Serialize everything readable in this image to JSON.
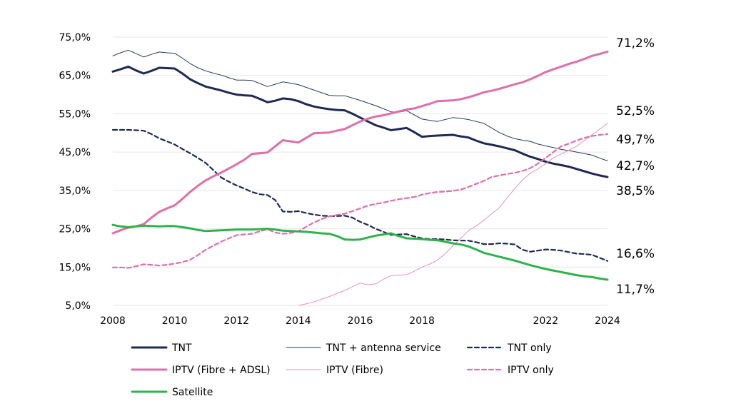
{
  "chart_data": {
    "type": "line",
    "title": "",
    "xlabel": "",
    "ylabel": "",
    "xlim": [
      2008,
      2024
    ],
    "ylim": [
      5,
      75
    ],
    "x_ticks": [
      "2008",
      "2010",
      "2012",
      "2014",
      "2016",
      "2018",
      "2022",
      "2024"
    ],
    "y_ticks": [
      "75,0%",
      "65,0%",
      "55,0%",
      "45,0%",
      "35,0%",
      "25,0%",
      "15,0%",
      "5,0%"
    ],
    "grid": true,
    "legend_position": "bottom",
    "end_labels": [
      "71,2%",
      "52,5%",
      "49,7%",
      "42,7%",
      "38,5%",
      "16,6%",
      "11,7%"
    ],
    "series": [
      {
        "name": "TNT",
        "color": "#1f2a52",
        "dash": "solid",
        "width": "thick",
        "x": [
          2008,
          2008.25,
          2008.5,
          2008.75,
          2009,
          2009.25,
          2009.5,
          2009.75,
          2010,
          2010.25,
          2010.5,
          2010.75,
          2011,
          2011.25,
          2011.5,
          2011.75,
          2012,
          2012.25,
          2012.5,
          2012.75,
          2013,
          2013.25,
          2013.5,
          2013.75,
          2014,
          2014.25,
          2014.5,
          2014.75,
          2015,
          2015.25,
          2015.5,
          2015.75,
          2016,
          2016.25,
          2016.5,
          2016.75,
          2017,
          2017.25,
          2017.5,
          2017.75,
          2018,
          2018.25,
          2018.5,
          2018.75,
          2019,
          2019.25,
          2019.5,
          2019.75,
          2020,
          2020.25,
          2020.5,
          2020.75,
          2021,
          2021.25,
          2021.5,
          2021.75,
          2022,
          2022.25,
          2022.5,
          2022.75,
          2023,
          2023.25,
          2023.5,
          2023.75,
          2024
        ],
        "y": [
          66.0,
          66.6,
          67.3,
          66.3,
          65.5,
          66.2,
          67.0,
          66.9,
          66.8,
          65.5,
          64.0,
          63.0,
          62.1,
          61.6,
          61.1,
          60.5,
          60.0,
          59.8,
          59.7,
          58.9,
          58.0,
          58.4,
          59.0,
          58.8,
          58.3,
          57.5,
          56.9,
          56.5,
          56.2,
          56.0,
          55.9,
          55.0,
          54.0,
          53.0,
          52.0,
          51.4,
          50.7,
          51.0,
          51.3,
          50.2,
          49.0,
          49.2,
          49.3,
          49.4,
          49.5,
          49.1,
          48.8,
          48.0,
          47.3,
          46.9,
          46.5,
          46.0,
          45.5,
          44.6,
          43.8,
          43.2,
          42.5,
          42.0,
          41.6,
          41.2,
          40.6,
          40.0,
          39.4,
          38.9,
          38.5
        ]
      },
      {
        "name": "TNT + antenna service",
        "color": "#2a3766",
        "dash": "solid",
        "width": "thin",
        "x": [
          2008,
          2008.25,
          2008.5,
          2008.75,
          2009,
          2009.25,
          2009.5,
          2009.75,
          2010,
          2010.25,
          2010.5,
          2010.75,
          2011,
          2011.25,
          2011.5,
          2011.75,
          2012,
          2012.25,
          2012.5,
          2012.75,
          2013,
          2013.25,
          2013.5,
          2013.75,
          2014,
          2014.25,
          2014.5,
          2014.75,
          2015,
          2015.25,
          2015.5,
          2015.75,
          2016,
          2016.25,
          2016.5,
          2016.75,
          2017,
          2017.25,
          2017.5,
          2017.75,
          2018,
          2018.25,
          2018.5,
          2018.75,
          2019,
          2019.25,
          2019.5,
          2019.75,
          2020,
          2020.25,
          2020.5,
          2020.75,
          2021,
          2021.25,
          2021.5,
          2021.75,
          2022,
          2022.25,
          2022.5,
          2022.75,
          2023,
          2023.25,
          2023.5,
          2023.75,
          2024
        ],
        "y": [
          70.1,
          70.9,
          71.6,
          70.7,
          69.8,
          70.5,
          71.1,
          70.9,
          70.8,
          69.5,
          68.1,
          67.0,
          66.2,
          65.6,
          65.1,
          64.4,
          63.8,
          63.8,
          63.7,
          62.9,
          62.1,
          62.7,
          63.3,
          63.0,
          62.6,
          61.9,
          61.2,
          60.5,
          59.8,
          59.7,
          59.7,
          59.1,
          58.5,
          57.8,
          57.1,
          56.3,
          55.5,
          55.4,
          55.8,
          54.7,
          53.6,
          53.3,
          53.0,
          53.5,
          54.0,
          53.8,
          53.5,
          53.0,
          52.5,
          51.3,
          50.1,
          49.2,
          48.5,
          48.1,
          47.8,
          47.1,
          46.6,
          46.2,
          45.7,
          45.4,
          45.0,
          44.6,
          44.2,
          43.4,
          42.7
        ]
      },
      {
        "name": "TNT only",
        "color": "#1f2a52",
        "dash": "dashed",
        "width": "medium",
        "x": [
          2008,
          2008.25,
          2008.5,
          2008.75,
          2009,
          2009.25,
          2009.5,
          2009.75,
          2010,
          2010.25,
          2010.5,
          2010.75,
          2011,
          2011.25,
          2011.5,
          2011.75,
          2012,
          2012.25,
          2012.5,
          2012.75,
          2013,
          2013.25,
          2013.5,
          2013.75,
          2014,
          2014.25,
          2014.5,
          2014.75,
          2015,
          2015.25,
          2015.5,
          2015.75,
          2016,
          2016.25,
          2016.5,
          2016.75,
          2017,
          2017.25,
          2017.5,
          2017.75,
          2018,
          2018.25,
          2018.5,
          2018.75,
          2019,
          2019.25,
          2019.5,
          2019.75,
          2020,
          2020.25,
          2020.5,
          2020.75,
          2021,
          2021.25,
          2021.5,
          2021.75,
          2022,
          2022.25,
          2022.5,
          2022.75,
          2023,
          2023.25,
          2023.5,
          2023.75,
          2024
        ],
        "y": [
          50.8,
          50.8,
          50.8,
          50.7,
          50.6,
          49.7,
          48.6,
          47.8,
          47.0,
          45.8,
          44.7,
          43.5,
          42.2,
          40.3,
          38.4,
          37.3,
          36.3,
          35.5,
          34.6,
          34.0,
          33.8,
          32.5,
          29.5,
          29.4,
          29.6,
          29.1,
          28.7,
          28.4,
          28.3,
          28.3,
          28.4,
          27.9,
          26.8,
          26.0,
          25.0,
          24.2,
          23.4,
          23.5,
          23.6,
          23.0,
          22.5,
          22.3,
          22.3,
          22.2,
          22.0,
          21.9,
          21.9,
          21.5,
          21.0,
          21.0,
          21.2,
          21.1,
          20.9,
          19.5,
          19.0,
          19.3,
          19.6,
          19.5,
          19.3,
          18.9,
          18.5,
          18.4,
          18.2,
          17.4,
          16.6
        ]
      },
      {
        "name": "IPTV (Fibre + ADSL)",
        "color": "#e06fa8",
        "dash": "solid",
        "width": "thick",
        "x": [
          2008,
          2008.25,
          2008.5,
          2008.75,
          2009,
          2009.25,
          2009.5,
          2009.75,
          2010,
          2010.25,
          2010.5,
          2010.75,
          2011,
          2011.25,
          2011.5,
          2011.75,
          2012,
          2012.25,
          2012.5,
          2012.75,
          2013,
          2013.25,
          2013.5,
          2013.75,
          2014,
          2014.25,
          2014.5,
          2014.75,
          2015,
          2015.25,
          2015.5,
          2015.75,
          2016,
          2016.25,
          2016.5,
          2016.75,
          2017,
          2017.25,
          2017.5,
          2017.75,
          2018,
          2018.25,
          2018.5,
          2018.75,
          2019,
          2019.25,
          2019.5,
          2019.75,
          2020,
          2020.25,
          2020.5,
          2020.75,
          2021,
          2021.25,
          2021.5,
          2021.75,
          2022,
          2022.25,
          2022.5,
          2022.75,
          2023,
          2023.25,
          2023.5,
          2023.75,
          2024
        ],
        "y": [
          23.8,
          24.6,
          25.3,
          25.6,
          26.2,
          27.9,
          29.4,
          30.3,
          31.1,
          32.8,
          34.6,
          36.2,
          37.6,
          38.7,
          39.6,
          40.7,
          41.8,
          43.0,
          44.5,
          44.7,
          44.9,
          46.5,
          48.1,
          47.8,
          47.5,
          48.7,
          49.9,
          50.0,
          50.1,
          50.6,
          51.0,
          52.0,
          53.0,
          53.7,
          54.3,
          54.6,
          55.1,
          55.6,
          56.1,
          56.4,
          57.0,
          57.6,
          58.3,
          58.4,
          58.5,
          58.8,
          59.3,
          59.9,
          60.6,
          61.0,
          61.5,
          62.1,
          62.7,
          63.2,
          64.0,
          64.9,
          65.9,
          66.6,
          67.3,
          68.0,
          68.6,
          69.3,
          70.1,
          70.6,
          71.2
        ]
      },
      {
        "name": "IPTV (Fibre)",
        "color": "#ea8fbe",
        "dash": "solid",
        "width": "thin",
        "x": [
          2014,
          2014.25,
          2014.5,
          2014.75,
          2015,
          2015.25,
          2015.5,
          2015.75,
          2016,
          2016.25,
          2016.5,
          2016.75,
          2017,
          2017.25,
          2017.5,
          2017.75,
          2018,
          2018.25,
          2018.5,
          2018.75,
          2019,
          2019.25,
          2019.5,
          2019.75,
          2020,
          2020.25,
          2020.5,
          2020.75,
          2021,
          2021.25,
          2021.5,
          2021.75,
          2022,
          2022.25,
          2022.5,
          2022.75,
          2023,
          2023.25,
          2023.5,
          2023.75,
          2024
        ],
        "y": [
          5.0,
          5.4,
          5.9,
          6.6,
          7.3,
          8.1,
          8.9,
          9.9,
          10.8,
          10.4,
          10.6,
          11.8,
          12.8,
          12.9,
          13.0,
          13.9,
          15.0,
          15.8,
          16.8,
          18.5,
          20.5,
          22.5,
          24.5,
          25.7,
          27.2,
          28.9,
          30.5,
          33.0,
          35.5,
          37.7,
          39.5,
          40.6,
          42.0,
          43.5,
          44.5,
          45.5,
          46.5,
          48.0,
          49.5,
          51.0,
          52.5
        ]
      },
      {
        "name": "IPTV only",
        "color": "#e06fa8",
        "dash": "dashed",
        "width": "medium",
        "x": [
          2008,
          2008.25,
          2008.5,
          2008.75,
          2009,
          2009.25,
          2009.5,
          2009.75,
          2010,
          2010.25,
          2010.5,
          2010.75,
          2011,
          2011.25,
          2011.5,
          2011.75,
          2012,
          2012.25,
          2012.5,
          2012.75,
          2013,
          2013.25,
          2013.5,
          2013.75,
          2014,
          2014.25,
          2014.5,
          2014.75,
          2015,
          2015.25,
          2015.5,
          2015.75,
          2016,
          2016.25,
          2016.5,
          2016.75,
          2017,
          2017.25,
          2017.5,
          2017.75,
          2018,
          2018.25,
          2018.5,
          2018.75,
          2019,
          2019.25,
          2019.5,
          2019.75,
          2020,
          2020.25,
          2020.5,
          2020.75,
          2021,
          2021.25,
          2021.5,
          2021.75,
          2022,
          2022.25,
          2022.5,
          2022.75,
          2023,
          2023.25,
          2023.5,
          2023.75,
          2024
        ],
        "y": [
          14.9,
          14.9,
          14.8,
          15.2,
          15.7,
          15.6,
          15.4,
          15.6,
          15.9,
          16.3,
          16.9,
          18.1,
          19.5,
          20.6,
          21.6,
          22.5,
          23.3,
          23.5,
          23.7,
          24.3,
          24.9,
          24.0,
          23.7,
          23.9,
          24.3,
          25.5,
          26.6,
          27.5,
          28.2,
          28.6,
          28.9,
          29.6,
          30.3,
          31.0,
          31.5,
          31.8,
          32.3,
          32.7,
          33.0,
          33.3,
          33.9,
          34.3,
          34.6,
          34.7,
          34.9,
          35.2,
          35.9,
          36.7,
          37.5,
          38.5,
          38.9,
          39.3,
          39.6,
          40.1,
          40.8,
          42.0,
          43.5,
          45.0,
          46.5,
          47.2,
          48.0,
          48.7,
          49.2,
          49.5,
          49.7
        ]
      },
      {
        "name": "Satellite",
        "color": "#2db34a",
        "dash": "solid",
        "width": "thick",
        "x": [
          2008,
          2008.25,
          2008.5,
          2008.75,
          2009,
          2009.25,
          2009.5,
          2009.75,
          2010,
          2010.25,
          2010.5,
          2010.75,
          2011,
          2011.25,
          2011.5,
          2011.75,
          2012,
          2012.25,
          2012.5,
          2012.75,
          2013,
          2013.25,
          2013.5,
          2013.75,
          2014,
          2014.25,
          2014.5,
          2014.75,
          2015,
          2015.25,
          2015.5,
          2015.75,
          2016,
          2016.25,
          2016.5,
          2016.75,
          2017,
          2017.25,
          2017.5,
          2017.75,
          2018,
          2018.25,
          2018.5,
          2018.75,
          2019,
          2019.25,
          2019.5,
          2019.75,
          2020,
          2020.25,
          2020.5,
          2020.75,
          2021,
          2021.25,
          2021.5,
          2021.75,
          2022,
          2022.25,
          2022.5,
          2022.75,
          2023,
          2023.25,
          2023.5,
          2023.75,
          2024
        ],
        "y": [
          26.0,
          25.6,
          25.4,
          25.6,
          25.8,
          25.7,
          25.6,
          25.7,
          25.7,
          25.4,
          25.1,
          24.7,
          24.4,
          24.5,
          24.6,
          24.7,
          24.8,
          24.8,
          24.8,
          24.9,
          25.0,
          24.8,
          24.5,
          24.4,
          24.3,
          24.2,
          24.0,
          23.8,
          23.7,
          23.1,
          22.2,
          22.1,
          22.2,
          22.7,
          23.2,
          23.5,
          23.8,
          23.1,
          22.5,
          22.4,
          22.3,
          22.1,
          22.0,
          21.6,
          21.2,
          20.9,
          20.4,
          19.6,
          18.7,
          18.2,
          17.7,
          17.2,
          16.7,
          16.1,
          15.5,
          15.0,
          14.5,
          14.1,
          13.7,
          13.3,
          12.9,
          12.6,
          12.4,
          12.0,
          11.7
        ]
      }
    ]
  }
}
